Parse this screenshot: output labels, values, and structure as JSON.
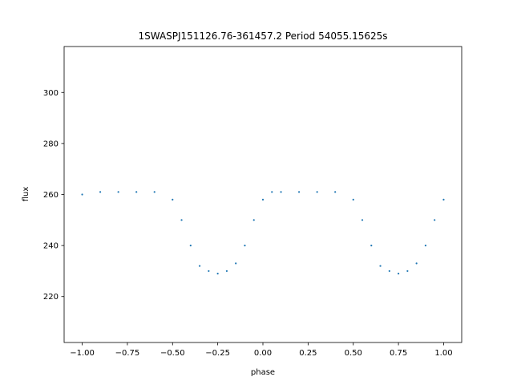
{
  "chart_data": {
    "type": "scatter",
    "title": "1SWASPJ151126.76-361457.2 Period 54055.15625s",
    "xlabel": "phase",
    "ylabel": "flux",
    "xlim": [
      -1.1,
      1.1
    ],
    "ylim": [
      202,
      318
    ],
    "x_ticks": [
      -1.0,
      -0.75,
      -0.5,
      -0.25,
      0.0,
      0.25,
      0.5,
      0.75,
      1.0
    ],
    "x_tick_labels": [
      "−1.00",
      "−0.75",
      "−0.50",
      "−0.25",
      "0.00",
      "0.25",
      "0.50",
      "0.75",
      "1.00"
    ],
    "y_ticks": [
      220,
      240,
      260,
      280,
      300
    ],
    "y_tick_labels": [
      "220",
      "240",
      "260",
      "280",
      "300"
    ],
    "grid": false,
    "legend": "none",
    "point_color": "#1f77b4",
    "series": [
      {
        "description_points": {
          "x": [
            -1.0,
            -0.9,
            -0.8,
            -0.7,
            -0.6,
            -0.5,
            -0.45,
            -0.4,
            -0.35,
            -0.3,
            -0.25,
            -0.2,
            -0.15,
            -0.1,
            -0.05,
            0.0,
            0.05,
            0.1,
            0.2,
            0.3,
            0.4,
            0.5,
            0.55,
            0.6,
            0.65,
            0.7,
            0.75,
            0.8,
            0.85,
            0.9,
            0.95,
            1.0
          ],
          "y": [
            260,
            261,
            261,
            261,
            261,
            258,
            250,
            240,
            232,
            230,
            229,
            230,
            233,
            240,
            250,
            258,
            261,
            261,
            261,
            261,
            261,
            258,
            250,
            240,
            232,
            230,
            229,
            230,
            233,
            240,
            250,
            258
          ]
        }
      }
    ]
  }
}
